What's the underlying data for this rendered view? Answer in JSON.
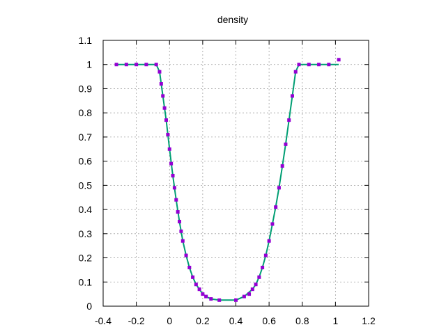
{
  "chart_data": {
    "type": "scatter",
    "title": "density",
    "xlabel": "",
    "ylabel": "",
    "xlim": [
      -0.4,
      1.2
    ],
    "ylim": [
      0,
      1.1
    ],
    "xticks": [
      "-0.4",
      "-0.2",
      "0",
      "0.2",
      "0.4",
      "0.6",
      "0.8",
      "1",
      "1.2"
    ],
    "yticks": [
      "0",
      "0.1",
      "0.2",
      "0.3",
      "0.4",
      "0.5",
      "0.6",
      "0.7",
      "0.8",
      "0.9",
      "1",
      "1.1"
    ],
    "grid": true,
    "colors": {
      "markers": "#9400d3",
      "line": "#009e73"
    },
    "series": [
      {
        "style": "points",
        "x": [
          -0.32,
          -0.26,
          -0.2,
          -0.14,
          -0.08,
          -0.06,
          -0.05,
          -0.04,
          -0.03,
          -0.02,
          -0.01,
          0.0,
          0.01,
          0.02,
          0.03,
          0.04,
          0.05,
          0.06,
          0.07,
          0.08,
          0.1,
          0.12,
          0.14,
          0.16,
          0.18,
          0.2,
          0.22,
          0.25,
          0.3,
          0.4,
          0.45,
          0.48,
          0.5,
          0.52,
          0.54,
          0.56,
          0.58,
          0.6,
          0.62,
          0.64,
          0.66,
          0.68,
          0.7,
          0.72,
          0.74,
          0.76,
          0.78,
          0.84,
          0.9,
          0.96,
          1.02
        ],
        "y": [
          1.0,
          1.0,
          1.0,
          1.0,
          1.0,
          0.97,
          0.92,
          0.87,
          0.82,
          0.77,
          0.71,
          0.65,
          0.59,
          0.54,
          0.49,
          0.44,
          0.39,
          0.35,
          0.31,
          0.27,
          0.21,
          0.16,
          0.12,
          0.09,
          0.07,
          0.05,
          0.04,
          0.03,
          0.025,
          0.025,
          0.04,
          0.05,
          0.07,
          0.09,
          0.12,
          0.16,
          0.21,
          0.27,
          0.34,
          0.41,
          0.49,
          0.58,
          0.67,
          0.77,
          0.87,
          0.97,
          1.0,
          1.0,
          1.0,
          1.0,
          1.02
        ]
      },
      {
        "style": "line",
        "x": [
          -0.32,
          -0.08,
          -0.06,
          -0.04,
          -0.02,
          0.0,
          0.02,
          0.04,
          0.06,
          0.08,
          0.1,
          0.12,
          0.14,
          0.16,
          0.18,
          0.2,
          0.22,
          0.25,
          0.3,
          0.4,
          0.45,
          0.5,
          0.52,
          0.54,
          0.56,
          0.58,
          0.6,
          0.62,
          0.64,
          0.66,
          0.68,
          0.7,
          0.72,
          0.74,
          0.76,
          0.78,
          1.02
        ],
        "y": [
          1.0,
          1.0,
          0.97,
          0.87,
          0.77,
          0.65,
          0.54,
          0.44,
          0.35,
          0.27,
          0.21,
          0.16,
          0.12,
          0.09,
          0.07,
          0.05,
          0.04,
          0.03,
          0.025,
          0.025,
          0.04,
          0.07,
          0.09,
          0.12,
          0.16,
          0.21,
          0.27,
          0.34,
          0.41,
          0.49,
          0.58,
          0.67,
          0.77,
          0.87,
          0.97,
          1.0,
          1.0
        ]
      }
    ]
  }
}
